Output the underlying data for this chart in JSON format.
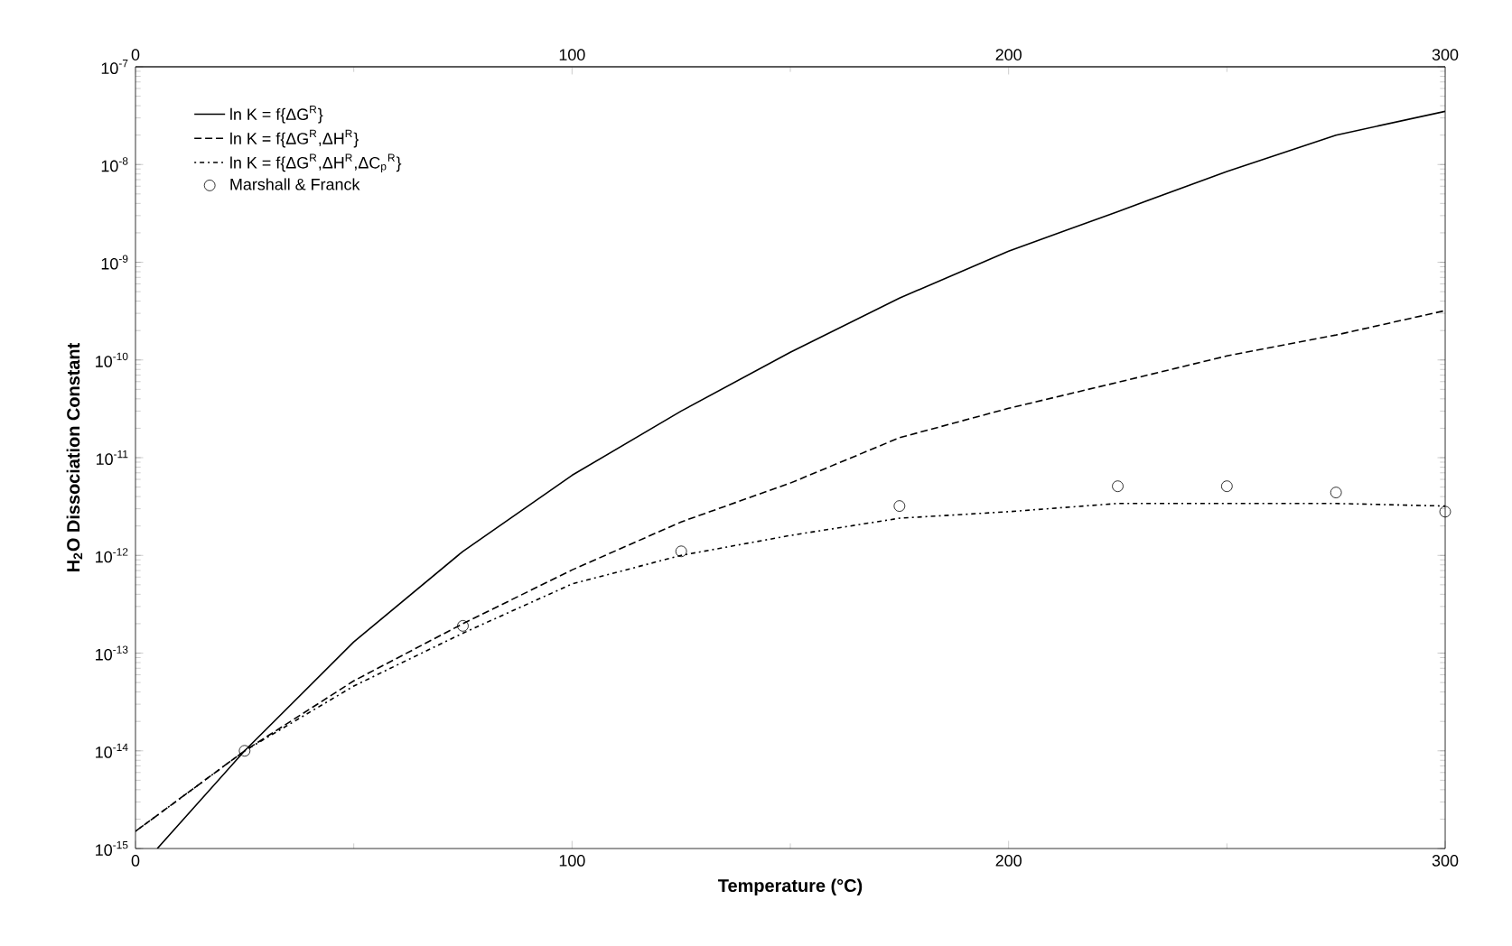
{
  "chart_data": {
    "type": "line",
    "xlabel": "Temperature (°C)",
    "ylabel": "H$_{2}$O Dissociation Constant",
    "xlim": [
      0,
      300
    ],
    "xticks": [
      0,
      100,
      200,
      300
    ],
    "x2lim": [
      0,
      300
    ],
    "x2ticks": [
      0,
      100,
      200,
      300
    ],
    "ylim": [
      1e-15,
      1e-07
    ],
    "log": "y",
    "yticks": [
      {
        "value": 1e-15,
        "label": "10$^{-15}$"
      },
      {
        "value": 1e-14,
        "label": "10$^{-14}$"
      },
      {
        "value": 1e-13,
        "label": "10$^{-13}$"
      },
      {
        "value": 1e-12,
        "label": "10$^{-12}$"
      },
      {
        "value": 1e-11,
        "label": "10$^{-11}$"
      },
      {
        "value": 1e-10,
        "label": "10$^{-10}$"
      },
      {
        "value": 1e-09,
        "label": "10$^{-9}$"
      },
      {
        "value": 1e-08,
        "label": "10$^{-8}$"
      },
      {
        "value": 1e-07,
        "label": "10$^{-7}$"
      }
    ],
    "grid": false,
    "legend": "top left",
    "series": [
      {
        "name": "ln K = f{ΔG$^{R}$}",
        "line_style": "solid",
        "marker": "none",
        "color": "#000000",
        "x": [
          5,
          25,
          50,
          75,
          100,
          125,
          150,
          175,
          200,
          225,
          250,
          275,
          300
        ],
        "values": [
          1e-15,
          1e-14,
          1.3e-13,
          1.1e-12,
          6.6e-12,
          3e-11,
          1.2e-10,
          4.3e-10,
          1.3e-09,
          3.3e-09,
          8.5e-09,
          2e-08,
          3.5e-08
        ]
      },
      {
        "name": "ln K = f{ΔG$^{R}$,ΔH$^{R}$}",
        "line_style": "dashed",
        "marker": "none",
        "color": "#000000",
        "x": [
          0,
          25,
          50,
          75,
          100,
          125,
          150,
          175,
          200,
          225,
          250,
          275,
          300
        ],
        "values": [
          1.5e-15,
          1e-14,
          5.2e-14,
          2e-13,
          7.1e-13,
          2.2e-12,
          5.5e-12,
          1.6e-11,
          3.2e-11,
          5.9e-11,
          1.1e-10,
          1.8e-10,
          3.2e-10
        ]
      },
      {
        "name": "ln K = f{ΔG$^{R}$,ΔH$^{R}$,ΔC$_{p}$$^{R}$}",
        "line_style": "dotted",
        "marker": "none",
        "color": "#000000",
        "x": [
          0,
          25,
          50,
          75,
          100,
          125,
          150,
          175,
          200,
          225,
          250,
          275,
          300
        ],
        "values": [
          1.5e-15,
          1e-14,
          4.6e-14,
          1.6e-13,
          5.1e-13,
          1e-12,
          1.6e-12,
          2.4e-12,
          2.8e-12,
          3.4e-12,
          3.4e-12,
          3.4e-12,
          3.2e-12
        ]
      },
      {
        "name": "Marshall & Franck",
        "type": "scatter",
        "marker": "circle",
        "color": "#000000",
        "x": [
          25,
          75,
          125,
          175,
          225,
          250,
          275,
          300
        ],
        "values": [
          1e-14,
          1.9e-13,
          1.1e-12,
          3.2e-12,
          5.1e-12,
          5.1e-12,
          4.4e-12,
          2.8e-12
        ]
      }
    ]
  }
}
